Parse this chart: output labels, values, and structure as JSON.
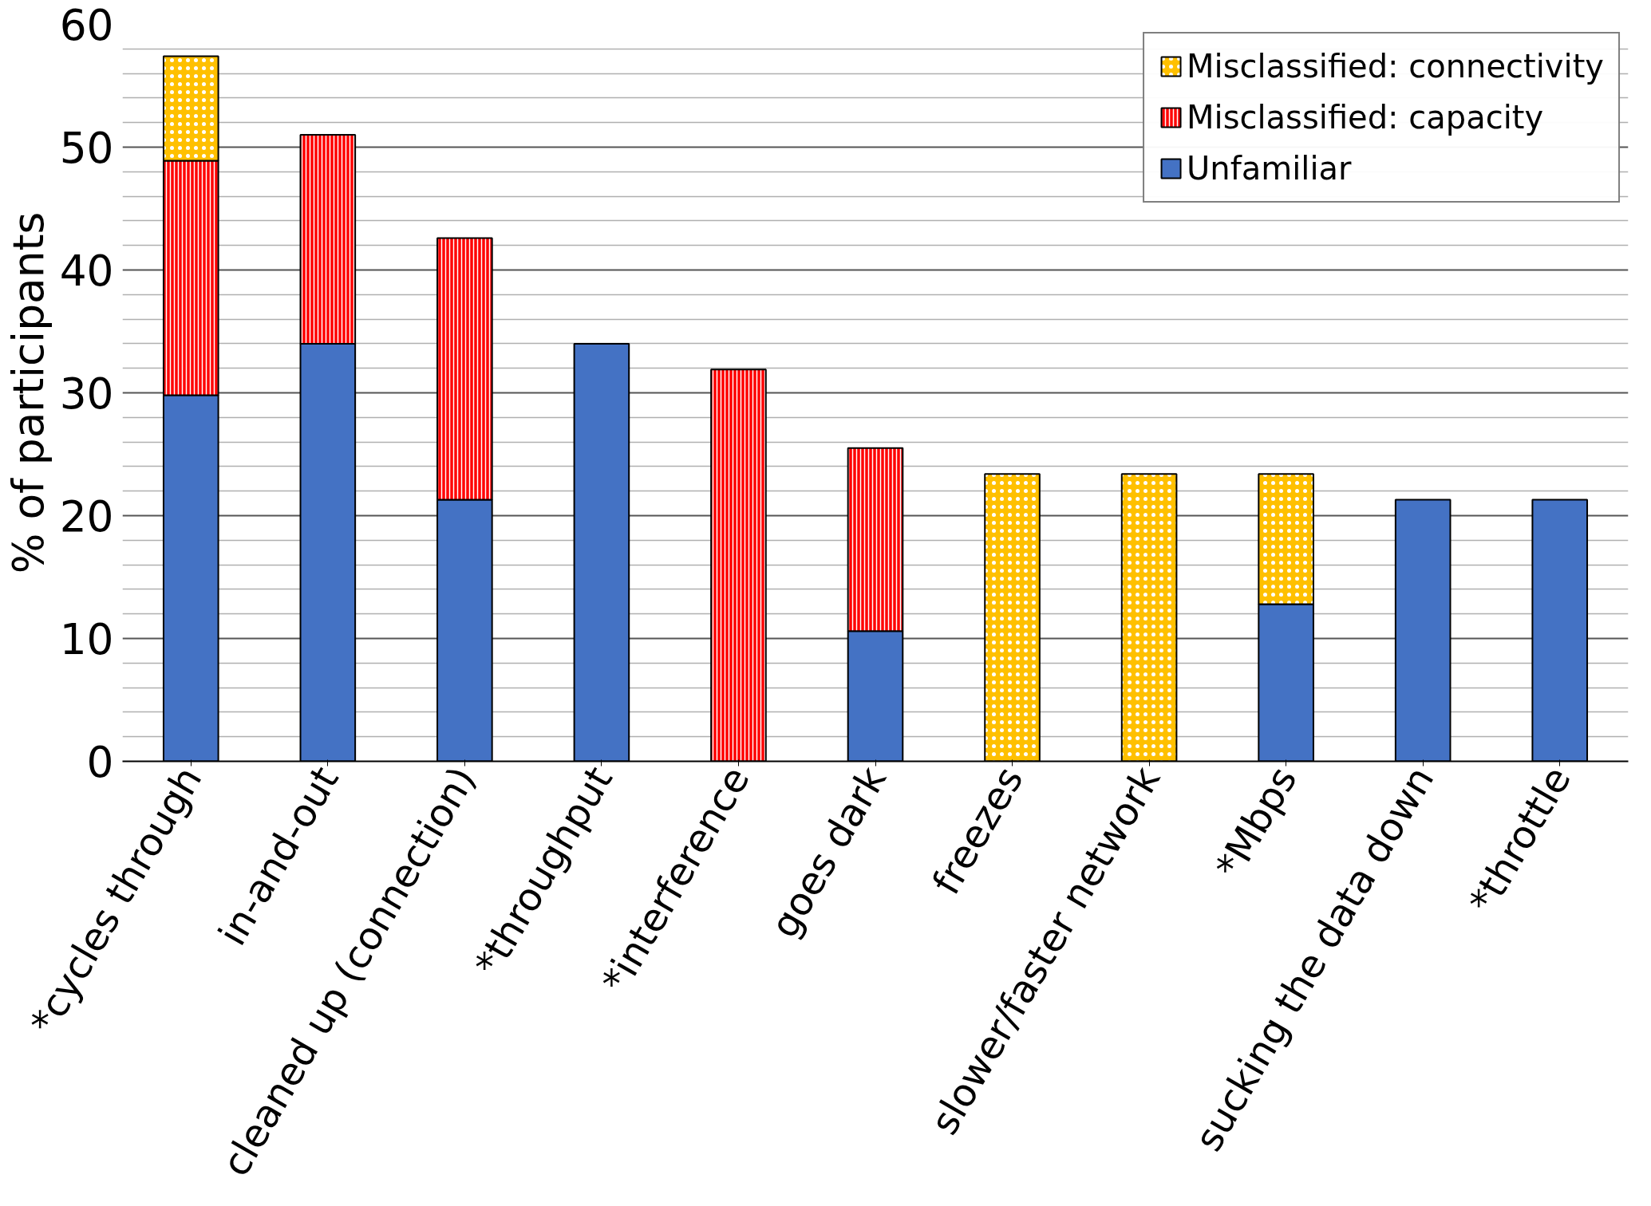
{
  "chart_data": {
    "type": "bar",
    "stacked": true,
    "ylabel": "% of participants",
    "categories": [
      "*cycles through",
      "in-and-out",
      "cleaned up (connection)",
      "*throughput",
      "*interference",
      "goes dark",
      "freezes",
      "slower/faster network",
      "*Mbps",
      "sucking the data down",
      "*throttle"
    ],
    "series": [
      {
        "name": "Unfamiliar",
        "color": "#4472c4",
        "values": [
          29.8,
          34.0,
          21.3,
          34.0,
          null,
          10.6,
          null,
          null,
          12.8,
          21.3,
          21.3
        ]
      },
      {
        "name": "Misclassified: capacity",
        "color": "#ff0000",
        "values": [
          19.1,
          17.0,
          21.3,
          null,
          31.9,
          14.9,
          null,
          null,
          null,
          null,
          null
        ]
      },
      {
        "name": "Misclassified: connectivity",
        "color": "#ffc000",
        "values": [
          8.5,
          null,
          null,
          null,
          null,
          null,
          23.4,
          23.4,
          10.6,
          null,
          null
        ]
      }
    ],
    "ylim": [
      0,
      60
    ],
    "yticks": [
      0,
      10,
      20,
      30,
      40,
      50,
      60
    ],
    "grid": "y",
    "legend": "top right"
  }
}
